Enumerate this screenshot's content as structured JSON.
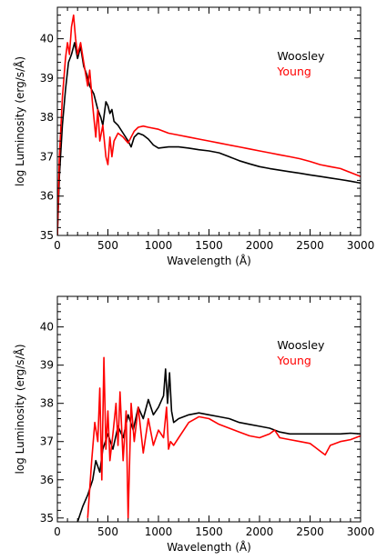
{
  "chart_data": [
    {
      "type": "line",
      "xlabel": "Wavelength (Å)",
      "ylabel": "log Luminosity (erg/s/Å)",
      "xlim": [
        0,
        3000
      ],
      "ylim": [
        35,
        40.8
      ],
      "xticks": [
        "0",
        "500",
        "1000",
        "1500",
        "2000",
        "2500",
        "3000"
      ],
      "yticks": [
        "35",
        "36",
        "37",
        "38",
        "39",
        "40"
      ],
      "legend_placement": "top-right",
      "series": [
        {
          "name": "Woosley",
          "color": "#000000",
          "x": [
            0,
            20,
            50,
            80,
            110,
            140,
            170,
            200,
            230,
            260,
            290,
            320,
            360,
            400,
            430,
            450,
            480,
            500,
            520,
            540,
            560,
            600,
            650,
            700,
            730,
            760,
            800,
            850,
            900,
            950,
            1000,
            1100,
            1200,
            1300,
            1400,
            1500,
            1600,
            1700,
            1800,
            1900,
            2000,
            2100,
            2200,
            2300,
            2400,
            2500,
            2600,
            2700,
            2800,
            2900,
            3000
          ],
          "y": [
            35.0,
            36.5,
            37.8,
            38.7,
            39.4,
            39.6,
            39.9,
            39.5,
            39.8,
            39.3,
            39.1,
            38.8,
            38.6,
            38.2,
            38.0,
            37.8,
            38.4,
            38.3,
            38.1,
            38.2,
            37.9,
            37.8,
            37.6,
            37.4,
            37.25,
            37.5,
            37.6,
            37.55,
            37.45,
            37.3,
            37.22,
            37.25,
            37.25,
            37.22,
            37.18,
            37.15,
            37.1,
            37.0,
            36.9,
            36.82,
            36.75,
            36.7,
            36.66,
            36.62,
            36.58,
            36.54,
            36.5,
            36.46,
            36.42,
            36.38,
            36.33
          ]
        },
        {
          "name": "Young",
          "color": "#ff0000",
          "x": [
            0,
            20,
            50,
            80,
            100,
            120,
            140,
            160,
            180,
            200,
            230,
            260,
            300,
            320,
            350,
            380,
            400,
            420,
            450,
            480,
            500,
            520,
            540,
            560,
            600,
            650,
            700,
            730,
            760,
            800,
            850,
            900,
            1000,
            1100,
            1200,
            1300,
            1400,
            1500,
            1600,
            1700,
            1800,
            1900,
            2000,
            2100,
            2200,
            2300,
            2400,
            2500,
            2600,
            2700,
            2800,
            2900,
            3000
          ],
          "y": [
            35.0,
            37.0,
            38.5,
            39.5,
            39.9,
            39.6,
            40.3,
            40.6,
            40.0,
            39.6,
            39.9,
            39.4,
            38.8,
            39.2,
            38.3,
            37.5,
            38.2,
            37.4,
            37.8,
            37.0,
            36.8,
            37.5,
            37.0,
            37.4,
            37.6,
            37.5,
            37.35,
            37.5,
            37.65,
            37.75,
            37.78,
            37.75,
            37.7,
            37.6,
            37.55,
            37.5,
            37.45,
            37.4,
            37.35,
            37.3,
            37.25,
            37.2,
            37.15,
            37.1,
            37.05,
            37.0,
            36.95,
            36.88,
            36.8,
            36.75,
            36.7,
            36.6,
            36.5
          ]
        }
      ]
    },
    {
      "type": "line",
      "xlabel": "Wavelength (Å)",
      "ylabel": "log Luminosity (erg/s/Å)",
      "xlim": [
        0,
        3000
      ],
      "ylim": [
        34.9,
        40.8
      ],
      "xticks": [
        "0",
        "500",
        "1000",
        "1500",
        "2000",
        "2500",
        "3000"
      ],
      "yticks": [
        "35",
        "36",
        "37",
        "38",
        "39",
        "40"
      ],
      "legend_placement": "top-right",
      "series": [
        {
          "name": "Woosley",
          "color": "#000000",
          "x": [
            200,
            250,
            300,
            350,
            380,
            420,
            450,
            500,
            550,
            600,
            650,
            700,
            750,
            800,
            850,
            900,
            950,
            1000,
            1050,
            1070,
            1090,
            1110,
            1130,
            1150,
            1200,
            1300,
            1400,
            1500,
            1600,
            1700,
            1800,
            1900,
            2000,
            2100,
            2200,
            2300,
            2400,
            2500,
            2600,
            2700,
            2800,
            2900,
            3000
          ],
          "y": [
            34.9,
            35.3,
            35.6,
            36.0,
            36.5,
            36.2,
            36.8,
            37.2,
            36.8,
            37.4,
            37.1,
            37.7,
            37.3,
            37.9,
            37.6,
            38.1,
            37.7,
            37.9,
            38.2,
            38.9,
            38.0,
            38.8,
            37.8,
            37.5,
            37.6,
            37.7,
            37.75,
            37.7,
            37.65,
            37.6,
            37.5,
            37.45,
            37.4,
            37.35,
            37.25,
            37.2,
            37.2,
            37.2,
            37.2,
            37.2,
            37.2,
            37.22,
            37.2
          ]
        },
        {
          "name": "Young",
          "color": "#ff0000",
          "x": [
            300,
            340,
            370,
            400,
            420,
            440,
            460,
            480,
            500,
            520,
            550,
            580,
            600,
            620,
            650,
            680,
            700,
            730,
            760,
            800,
            850,
            900,
            950,
            1000,
            1050,
            1080,
            1100,
            1120,
            1150,
            1200,
            1300,
            1400,
            1500,
            1600,
            1700,
            1800,
            1900,
            2000,
            2100,
            2150,
            2200,
            2300,
            2400,
            2500,
            2550,
            2600,
            2650,
            2700,
            2800,
            2900,
            3000
          ],
          "y": [
            35.0,
            36.5,
            37.5,
            37.0,
            38.4,
            36.0,
            39.2,
            36.8,
            37.8,
            36.5,
            37.2,
            38.0,
            36.9,
            38.3,
            36.5,
            37.8,
            35.0,
            38.0,
            37.0,
            37.9,
            36.7,
            37.6,
            36.9,
            37.3,
            37.1,
            37.9,
            36.8,
            37.0,
            36.9,
            37.1,
            37.5,
            37.65,
            37.6,
            37.45,
            37.35,
            37.25,
            37.15,
            37.1,
            37.2,
            37.3,
            37.1,
            37.05,
            37.0,
            36.95,
            36.85,
            36.75,
            36.65,
            36.9,
            37.0,
            37.05,
            37.15
          ]
        }
      ]
    }
  ]
}
